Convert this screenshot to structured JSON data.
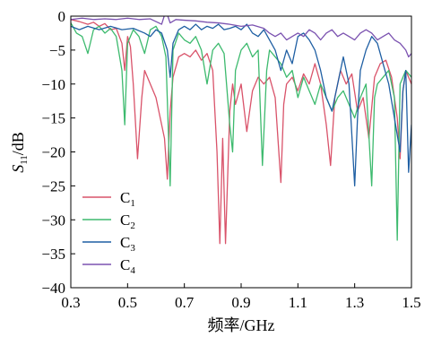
{
  "chart_data": {
    "type": "line",
    "xlabel_prefix": "频率",
    "xlabel_unit": "/GHz",
    "ylabel_main": "S",
    "ylabel_sub": "11",
    "ylabel_unit": "/dB",
    "xlim": [
      0.3,
      1.5
    ],
    "ylim": [
      -40,
      0
    ],
    "xticks": [
      0.3,
      0.5,
      0.7,
      0.9,
      1.1,
      1.3,
      1.5
    ],
    "xtick_labels": [
      "0.3",
      "0.5",
      "0.7",
      "0.9",
      "1.1",
      "1.3",
      "1.5"
    ],
    "yticks": [
      0,
      -5,
      -10,
      -15,
      -20,
      -25,
      -30,
      -35,
      -40
    ],
    "ytick_labels": [
      "0",
      "−5",
      "−10",
      "−15",
      "−20",
      "−25",
      "−30",
      "−35",
      "−40"
    ],
    "legend_position": "lower-left",
    "series": [
      {
        "name_main": "C",
        "name_sub": "1",
        "color": "#d9536a",
        "points": [
          [
            0.3,
            -0.5
          ],
          [
            0.33,
            -0.8
          ],
          [
            0.36,
            -1.2
          ],
          [
            0.38,
            -0.9
          ],
          [
            0.4,
            -1.5
          ],
          [
            0.42,
            -1.1
          ],
          [
            0.44,
            -2.0
          ],
          [
            0.46,
            -1.8
          ],
          [
            0.48,
            -4.0
          ],
          [
            0.49,
            -8.0
          ],
          [
            0.5,
            -3.0
          ],
          [
            0.51,
            -4.5
          ],
          [
            0.52,
            -10.0
          ],
          [
            0.535,
            -21.0
          ],
          [
            0.55,
            -12.0
          ],
          [
            0.56,
            -8.0
          ],
          [
            0.58,
            -10.0
          ],
          [
            0.6,
            -12.0
          ],
          [
            0.615,
            -15.0
          ],
          [
            0.63,
            -18.0
          ],
          [
            0.64,
            -24.0
          ],
          [
            0.65,
            -14.0
          ],
          [
            0.66,
            -9.0
          ],
          [
            0.67,
            -7.5
          ],
          [
            0.68,
            -6.0
          ],
          [
            0.7,
            -5.5
          ],
          [
            0.72,
            -6.0
          ],
          [
            0.74,
            -5.0
          ],
          [
            0.76,
            -6.5
          ],
          [
            0.78,
            -5.5
          ],
          [
            0.8,
            -8.0
          ],
          [
            0.815,
            -20.0
          ],
          [
            0.825,
            -33.5
          ],
          [
            0.835,
            -18.0
          ],
          [
            0.845,
            -33.5
          ],
          [
            0.86,
            -14.0
          ],
          [
            0.87,
            -10.0
          ],
          [
            0.88,
            -13.0
          ],
          [
            0.9,
            -10.0
          ],
          [
            0.92,
            -17.0
          ],
          [
            0.94,
            -11.0
          ],
          [
            0.96,
            -9.0
          ],
          [
            0.98,
            -10.0
          ],
          [
            1.0,
            -9.0
          ],
          [
            1.02,
            -12.0
          ],
          [
            1.04,
            -24.5
          ],
          [
            1.05,
            -13.0
          ],
          [
            1.06,
            -10.0
          ],
          [
            1.08,
            -9.0
          ],
          [
            1.1,
            -11.0
          ],
          [
            1.12,
            -8.5
          ],
          [
            1.14,
            -10.0
          ],
          [
            1.16,
            -7.0
          ],
          [
            1.18,
            -10.0
          ],
          [
            1.2,
            -16.0
          ],
          [
            1.215,
            -22.0
          ],
          [
            1.23,
            -12.0
          ],
          [
            1.25,
            -8.0
          ],
          [
            1.27,
            -10.0
          ],
          [
            1.29,
            -8.5
          ],
          [
            1.31,
            -14.0
          ],
          [
            1.33,
            -12.0
          ],
          [
            1.35,
            -18.0
          ],
          [
            1.37,
            -9.0
          ],
          [
            1.39,
            -7.0
          ],
          [
            1.41,
            -6.5
          ],
          [
            1.43,
            -9.0
          ],
          [
            1.45,
            -15.0
          ],
          [
            1.46,
            -21.0
          ],
          [
            1.47,
            -11.0
          ],
          [
            1.48,
            -8.0
          ],
          [
            1.5,
            -10.0
          ]
        ]
      },
      {
        "name_main": "C",
        "name_sub": "2",
        "color": "#3dba6e",
        "points": [
          [
            0.3,
            -1.0
          ],
          [
            0.32,
            -2.5
          ],
          [
            0.34,
            -3.0
          ],
          [
            0.36,
            -5.5
          ],
          [
            0.38,
            -2.0
          ],
          [
            0.4,
            -1.5
          ],
          [
            0.42,
            -2.5
          ],
          [
            0.44,
            -1.8
          ],
          [
            0.46,
            -3.0
          ],
          [
            0.48,
            -8.0
          ],
          [
            0.49,
            -16.0
          ],
          [
            0.5,
            -4.0
          ],
          [
            0.52,
            -2.0
          ],
          [
            0.54,
            -3.0
          ],
          [
            0.56,
            -5.5
          ],
          [
            0.58,
            -2.0
          ],
          [
            0.6,
            -1.5
          ],
          [
            0.62,
            -3.0
          ],
          [
            0.635,
            -6.0
          ],
          [
            0.65,
            -25.0
          ],
          [
            0.66,
            -5.0
          ],
          [
            0.68,
            -2.5
          ],
          [
            0.7,
            -3.5
          ],
          [
            0.72,
            -4.0
          ],
          [
            0.74,
            -3.0
          ],
          [
            0.76,
            -5.0
          ],
          [
            0.78,
            -10.0
          ],
          [
            0.8,
            -5.0
          ],
          [
            0.82,
            -4.0
          ],
          [
            0.84,
            -5.5
          ],
          [
            0.86,
            -16.0
          ],
          [
            0.87,
            -20.0
          ],
          [
            0.88,
            -8.0
          ],
          [
            0.9,
            -5.0
          ],
          [
            0.92,
            -4.0
          ],
          [
            0.94,
            -6.0
          ],
          [
            0.96,
            -5.0
          ],
          [
            0.975,
            -22.0
          ],
          [
            0.99,
            -8.0
          ],
          [
            1.0,
            -5.0
          ],
          [
            1.02,
            -6.0
          ],
          [
            1.04,
            -7.0
          ],
          [
            1.06,
            -9.0
          ],
          [
            1.08,
            -8.0
          ],
          [
            1.1,
            -12.0
          ],
          [
            1.12,
            -9.0
          ],
          [
            1.14,
            -11.0
          ],
          [
            1.16,
            -13.0
          ],
          [
            1.18,
            -10.0
          ],
          [
            1.2,
            -12.0
          ],
          [
            1.22,
            -14.0
          ],
          [
            1.24,
            -12.0
          ],
          [
            1.26,
            -11.0
          ],
          [
            1.28,
            -13.0
          ],
          [
            1.3,
            -15.0
          ],
          [
            1.32,
            -12.0
          ],
          [
            1.34,
            -10.0
          ],
          [
            1.36,
            -25.0
          ],
          [
            1.37,
            -12.0
          ],
          [
            1.38,
            -10.0
          ],
          [
            1.4,
            -9.0
          ],
          [
            1.42,
            -8.0
          ],
          [
            1.44,
            -12.0
          ],
          [
            1.45,
            -33.0
          ],
          [
            1.46,
            -10.0
          ],
          [
            1.48,
            -8.0
          ],
          [
            1.5,
            -9.0
          ]
        ]
      },
      {
        "name_main": "C",
        "name_sub": "3",
        "color": "#1f5fa3",
        "points": [
          [
            0.3,
            -1.5
          ],
          [
            0.33,
            -2.0
          ],
          [
            0.36,
            -1.5
          ],
          [
            0.4,
            -2.0
          ],
          [
            0.44,
            -1.5
          ],
          [
            0.48,
            -2.0
          ],
          [
            0.52,
            -1.8
          ],
          [
            0.56,
            -2.5
          ],
          [
            0.58,
            -3.0
          ],
          [
            0.6,
            -2.0
          ],
          [
            0.62,
            -2.5
          ],
          [
            0.64,
            -5.0
          ],
          [
            0.65,
            -9.0
          ],
          [
            0.66,
            -4.0
          ],
          [
            0.68,
            -2.0
          ],
          [
            0.7,
            -1.5
          ],
          [
            0.72,
            -2.0
          ],
          [
            0.74,
            -1.2
          ],
          [
            0.76,
            -2.0
          ],
          [
            0.78,
            -1.5
          ],
          [
            0.8,
            -1.8
          ],
          [
            0.82,
            -1.2
          ],
          [
            0.84,
            -2.0
          ],
          [
            0.86,
            -1.8
          ],
          [
            0.88,
            -1.5
          ],
          [
            0.9,
            -2.0
          ],
          [
            0.92,
            -1.2
          ],
          [
            0.94,
            -2.5
          ],
          [
            0.96,
            -3.0
          ],
          [
            0.98,
            -2.0
          ],
          [
            1.0,
            -3.5
          ],
          [
            1.02,
            -5.0
          ],
          [
            1.04,
            -8.0
          ],
          [
            1.06,
            -5.0
          ],
          [
            1.08,
            -7.0
          ],
          [
            1.1,
            -3.0
          ],
          [
            1.12,
            -2.5
          ],
          [
            1.14,
            -3.5
          ],
          [
            1.16,
            -5.0
          ],
          [
            1.18,
            -8.0
          ],
          [
            1.2,
            -12.0
          ],
          [
            1.22,
            -14.0
          ],
          [
            1.24,
            -10.0
          ],
          [
            1.26,
            -6.0
          ],
          [
            1.28,
            -10.0
          ],
          [
            1.3,
            -25.0
          ],
          [
            1.31,
            -15.0
          ],
          [
            1.32,
            -8.0
          ],
          [
            1.34,
            -5.0
          ],
          [
            1.36,
            -3.0
          ],
          [
            1.38,
            -4.0
          ],
          [
            1.4,
            -7.0
          ],
          [
            1.42,
            -10.0
          ],
          [
            1.44,
            -15.0
          ],
          [
            1.46,
            -20.0
          ],
          [
            1.47,
            -11.0
          ],
          [
            1.48,
            -8.0
          ],
          [
            1.49,
            -23.0
          ],
          [
            1.5,
            -16.0
          ]
        ]
      },
      {
        "name_main": "C",
        "name_sub": "4",
        "color": "#7b52b0",
        "points": [
          [
            0.3,
            -0.5
          ],
          [
            0.34,
            -0.3
          ],
          [
            0.38,
            -0.5
          ],
          [
            0.42,
            -0.4
          ],
          [
            0.46,
            -0.5
          ],
          [
            0.5,
            -0.3
          ],
          [
            0.54,
            -0.5
          ],
          [
            0.58,
            -0.4
          ],
          [
            0.6,
            -0.8
          ],
          [
            0.62,
            -1.2
          ],
          [
            0.635,
            0.8
          ],
          [
            0.65,
            -1.0
          ],
          [
            0.67,
            -0.5
          ],
          [
            0.7,
            -0.6
          ],
          [
            0.74,
            -0.7
          ],
          [
            0.78,
            -0.9
          ],
          [
            0.82,
            -1.0
          ],
          [
            0.86,
            -1.2
          ],
          [
            0.9,
            -1.5
          ],
          [
            0.94,
            -1.3
          ],
          [
            0.98,
            -1.8
          ],
          [
            1.0,
            -2.5
          ],
          [
            1.02,
            -3.0
          ],
          [
            1.04,
            -2.5
          ],
          [
            1.06,
            -3.5
          ],
          [
            1.08,
            -3.0
          ],
          [
            1.1,
            -2.5
          ],
          [
            1.12,
            -3.0
          ],
          [
            1.14,
            -2.0
          ],
          [
            1.16,
            -2.5
          ],
          [
            1.18,
            -3.5
          ],
          [
            1.2,
            -2.5
          ],
          [
            1.22,
            -2.0
          ],
          [
            1.24,
            -3.0
          ],
          [
            1.26,
            -2.5
          ],
          [
            1.28,
            -3.0
          ],
          [
            1.3,
            -3.5
          ],
          [
            1.32,
            -2.5
          ],
          [
            1.34,
            -2.0
          ],
          [
            1.36,
            -2.5
          ],
          [
            1.38,
            -3.5
          ],
          [
            1.4,
            -3.0
          ],
          [
            1.42,
            -2.5
          ],
          [
            1.44,
            -3.5
          ],
          [
            1.46,
            -4.0
          ],
          [
            1.48,
            -5.0
          ],
          [
            1.49,
            -6.0
          ],
          [
            1.5,
            -5.5
          ]
        ]
      }
    ]
  }
}
